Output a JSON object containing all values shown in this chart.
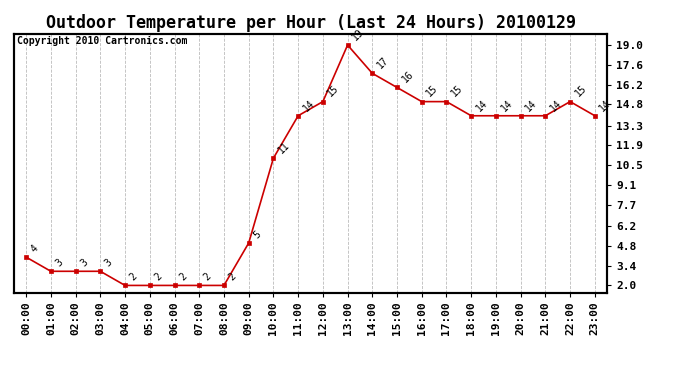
{
  "title": "Outdoor Temperature per Hour (Last 24 Hours) 20100129",
  "copyright": "Copyright 2010 Cartronics.com",
  "hours": [
    "00:00",
    "01:00",
    "02:00",
    "03:00",
    "04:00",
    "05:00",
    "06:00",
    "07:00",
    "08:00",
    "09:00",
    "10:00",
    "11:00",
    "12:00",
    "13:00",
    "14:00",
    "15:00",
    "16:00",
    "17:00",
    "18:00",
    "19:00",
    "20:00",
    "21:00",
    "22:00",
    "23:00"
  ],
  "temps": [
    4,
    3,
    3,
    3,
    2,
    2,
    2,
    2,
    2,
    5,
    11,
    14,
    15,
    19,
    17,
    16,
    15,
    15,
    14,
    14,
    14,
    14,
    15,
    14
  ],
  "line_color": "#cc0000",
  "marker_color": "#cc0000",
  "bg_color": "#ffffff",
  "grid_color": "#bbbbbb",
  "yticks": [
    2.0,
    3.4,
    4.8,
    6.2,
    7.7,
    9.1,
    10.5,
    11.9,
    13.3,
    14.8,
    16.2,
    17.6,
    19.0
  ],
  "title_fontsize": 12,
  "annotation_fontsize": 7,
  "tick_fontsize": 8,
  "copyright_fontsize": 7
}
